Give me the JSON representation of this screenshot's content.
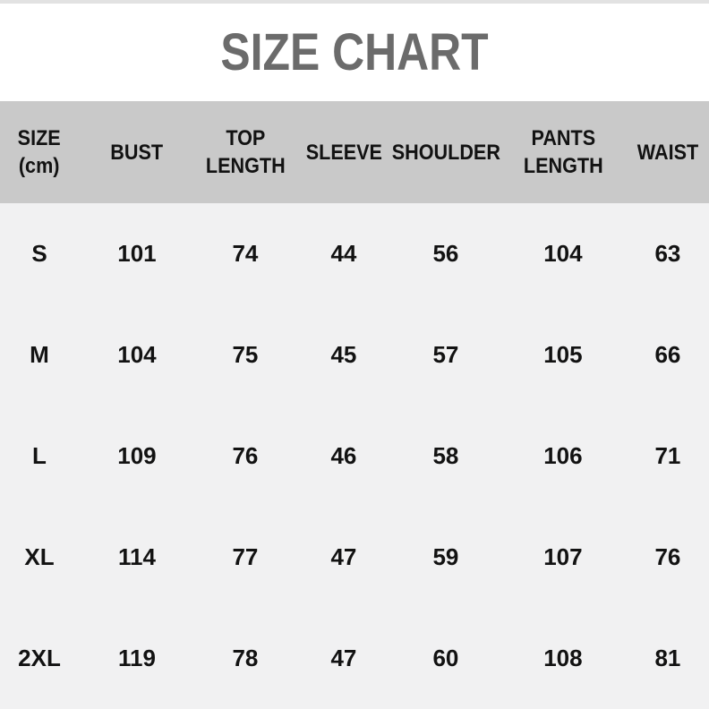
{
  "title": "SIZE CHART",
  "colors": {
    "top_strip": "#e2e2e2",
    "title_text": "#6b6b6b",
    "header_background": "#c9c9c9",
    "body_background": "#f1f1f2",
    "table_text": "#121212"
  },
  "chart_data": {
    "type": "table",
    "title": "SIZE CHART",
    "unit": "cm",
    "columns": [
      "SIZE\n(cm)",
      "BUST",
      "TOP\nLENGTH",
      "SLEEVE",
      "SHOULDER",
      "PANTS\nLENGTH",
      "WAIST"
    ],
    "rows": [
      [
        "S",
        "101",
        "74",
        "44",
        "56",
        "104",
        "63"
      ],
      [
        "M",
        "104",
        "75",
        "45",
        "57",
        "105",
        "66"
      ],
      [
        "L",
        "109",
        "76",
        "46",
        "58",
        "106",
        "71"
      ],
      [
        "XL",
        "114",
        "77",
        "47",
        "59",
        "107",
        "76"
      ],
      [
        "2XL",
        "119",
        "78",
        "47",
        "60",
        "108",
        "81"
      ]
    ]
  }
}
